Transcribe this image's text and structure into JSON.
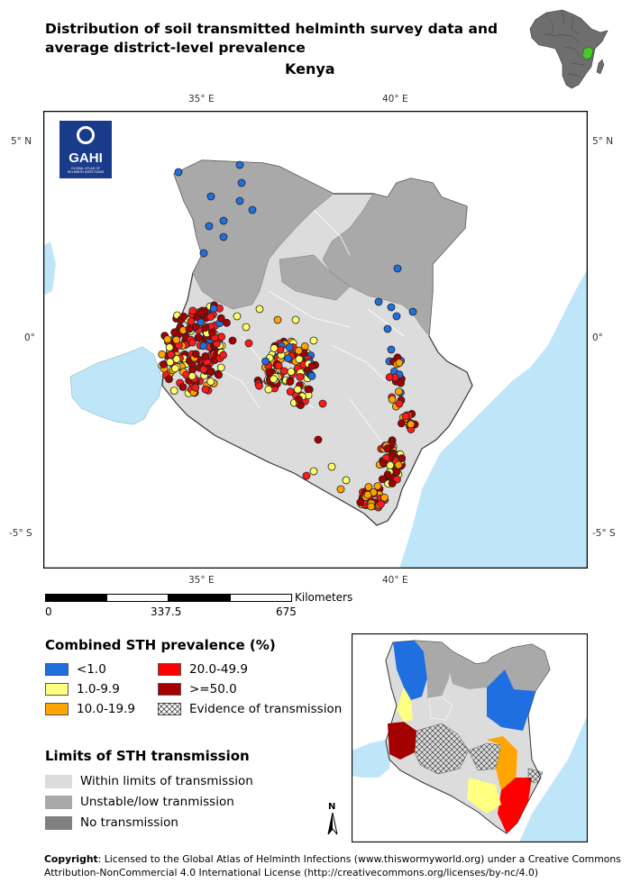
{
  "title_line1": "Distribution of soil transmitted helminth survey data and",
  "title_line2": "average district-level prevalence",
  "country": "Kenya",
  "ticks": {
    "lon_35": "35° E",
    "lon_40": "40° E",
    "lat_5n": "5° N",
    "lat_0": "0°",
    "lat_5s": "-5° S"
  },
  "logo": {
    "text": "GAHI",
    "subtext": "GLOBAL ATLAS OF HELMINTH INFECTIONS"
  },
  "scale_bar": {
    "unit": "Kilometers",
    "labels": [
      "0",
      "337.5",
      "675"
    ]
  },
  "prevalence_legend": {
    "title": "Combined STH prevalence (%)",
    "items": [
      {
        "label": "<1.0",
        "color": "#1f6fe0"
      },
      {
        "label": "1.0-9.9",
        "color": "#ffff80"
      },
      {
        "label": "10.0-19.9",
        "color": "#ffa500"
      },
      {
        "label": "20.0-49.9",
        "color": "#ff0000"
      },
      {
        "label": ">=50.0",
        "color": "#a50000"
      },
      {
        "label": "Evidence of transmission",
        "color": "hatched"
      }
    ]
  },
  "limits_legend": {
    "title": "Limits of STH transmission",
    "items": [
      {
        "label": "Within limits of transmission",
        "color": "#dcdcdc"
      },
      {
        "label": "Unstable/low tranmission",
        "color": "#a9a9a9"
      },
      {
        "label": "No transmission",
        "color": "#808080"
      }
    ]
  },
  "north_arrow": "N",
  "copyright": {
    "label": "Copyright",
    "text": ": Licensed to the Global Atlas of Helminth Infections  (www.thiswormyworld.org) under a Creative Commons Attribution-NonCommercial 4.0 International License (http://creativecommons.org/licenses/by-nc/4.0)"
  }
}
